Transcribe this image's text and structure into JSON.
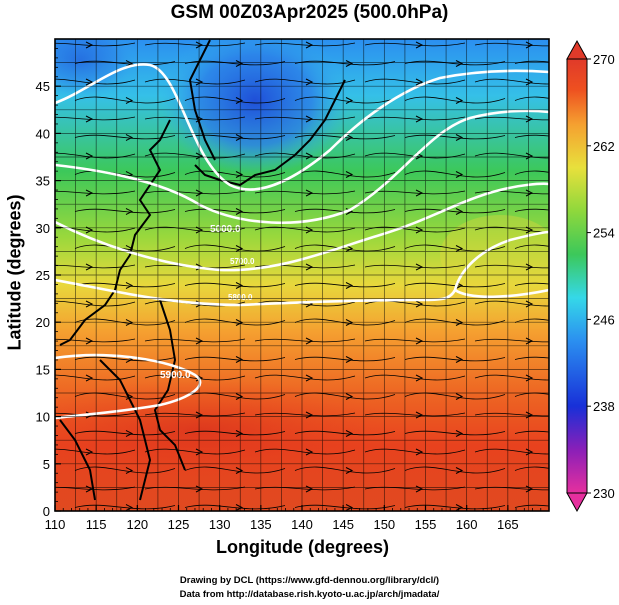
{
  "title": "GSM 00Z03Apr2025 (500.0hPa)",
  "x_axis": {
    "label": "Longitude (degrees)",
    "min": 110,
    "max": 170,
    "ticks": [
      "110",
      "115",
      "120",
      "125",
      "130",
      "135",
      "140",
      "145",
      "150",
      "155",
      "160",
      "165"
    ]
  },
  "y_axis": {
    "label": "Latitude  (degrees)",
    "min": 0,
    "max": 50,
    "ticks": [
      "0",
      "5",
      "10",
      "15",
      "20",
      "25",
      "30",
      "35",
      "40",
      "45"
    ]
  },
  "colorbar": {
    "min": 230,
    "max": 270,
    "labels": [
      "270",
      "262",
      "254",
      "246",
      "238",
      "230"
    ],
    "stops": [
      "#e6309e",
      "#8a1fb8",
      "#1830d8",
      "#2b8ff0",
      "#35d8e8",
      "#3cc85a",
      "#8fd83c",
      "#e8e03c",
      "#f5a030",
      "#ee5020",
      "#e03a2a"
    ]
  },
  "contours": {
    "labels": [
      "5000.0",
      "5700.0",
      "5800.0",
      "5900.0"
    ],
    "color": "#ffffff"
  },
  "credits": {
    "line1": "Drawing by DCL (https://www.gfd-dennou.org/library/dcl/)",
    "line2": "Data from http://database.rish.kyoto-u.ac.jp/arch/jmadata/"
  }
}
